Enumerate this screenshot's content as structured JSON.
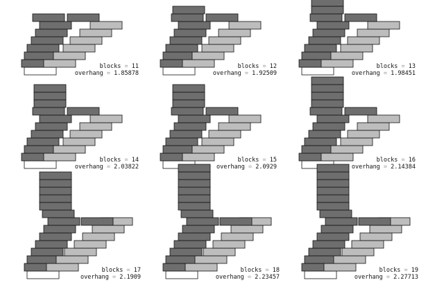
{
  "colors": {
    "dark": "#6e6e6e",
    "light": "#bdbdbd",
    "base": "#ffffff",
    "outline": "#111111"
  },
  "diagrams": [
    {
      "blocks_label": "blocks",
      "blocks": "11",
      "overhang_label": "overhang",
      "overhang": "1.85878"
    },
    {
      "blocks_label": "blocks",
      "blocks": "12",
      "overhang_label": "overhang",
      "overhang": "1.92509"
    },
    {
      "blocks_label": "blocks",
      "blocks": "13",
      "overhang_label": "overhang",
      "overhang": "1.98451"
    },
    {
      "blocks_label": "blocks",
      "blocks": "14",
      "overhang_label": "overhang",
      "overhang": "2.03822"
    },
    {
      "blocks_label": "blocks",
      "blocks": "15",
      "overhang_label": "overhang",
      "overhang": "2.0929"
    },
    {
      "blocks_label": "blocks",
      "blocks": "16",
      "overhang_label": "overhang",
      "overhang": "2.14384"
    },
    {
      "blocks_label": "blocks",
      "blocks": "17",
      "overhang_label": "overhang",
      "overhang": "2.1909"
    },
    {
      "blocks_label": "blocks",
      "blocks": "18",
      "overhang_label": "overhang",
      "overhang": "2.23457"
    },
    {
      "blocks_label": "blocks",
      "blocks": "19",
      "overhang_label": "overhang",
      "overhang": "2.27713"
    }
  ]
}
